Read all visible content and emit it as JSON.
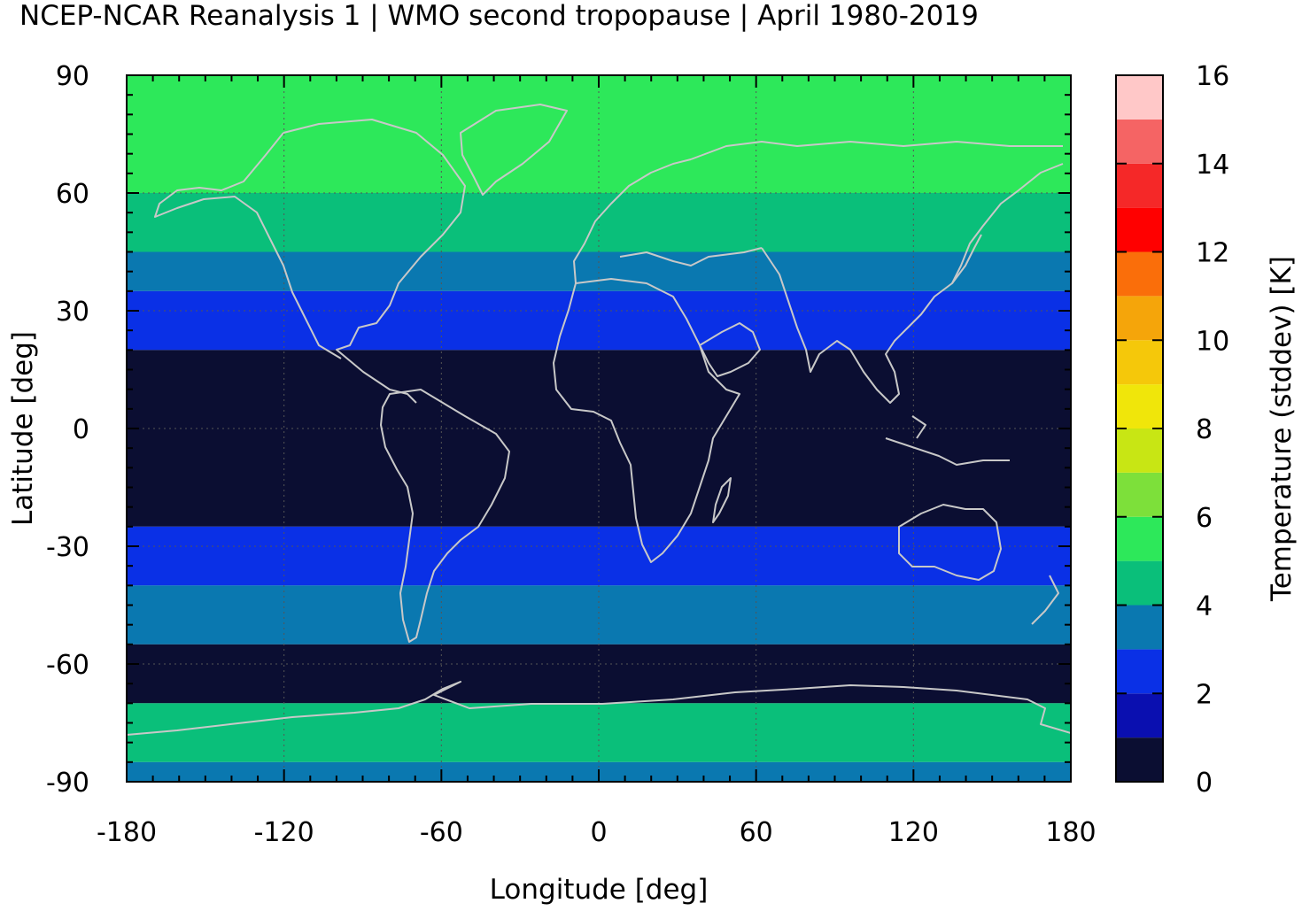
{
  "title": "NCEP-NCAR Reanalysis 1 | WMO second tropopause | April 1980-2019",
  "chart_data": {
    "type": "heatmap",
    "title": "NCEP-NCAR Reanalysis 1 | WMO second tropopause | April 1980-2019",
    "xlabel": "Longitude [deg]",
    "ylabel": "Latitude [deg]",
    "colorbar_label": "Temperature (stddev) [K]",
    "xlim": [
      -180,
      180
    ],
    "ylim": [
      -90,
      90
    ],
    "x_ticks": [
      -180,
      -120,
      -60,
      0,
      60,
      120,
      180
    ],
    "y_ticks": [
      90,
      60,
      30,
      0,
      -30,
      -60,
      -90
    ],
    "x_tick_labels": [
      "-180",
      "-120",
      "-60",
      "0",
      "60",
      "120",
      "180"
    ],
    "y_tick_labels": [
      "90",
      "60",
      "30",
      "0",
      "-30",
      "-60",
      "-90"
    ],
    "colorbar_ticks": [
      0,
      2,
      4,
      6,
      8,
      10,
      12,
      14,
      16
    ],
    "colorbar_tick_labels": [
      "0",
      "2",
      "4",
      "6",
      "8",
      "10",
      "12",
      "14",
      "16"
    ],
    "colorbar_range": [
      0,
      16
    ],
    "colorbar_levels": [
      "#0b0e32",
      "#0a0fb0",
      "#0a30e6",
      "#0a78b0",
      "#0abf7a",
      "#2de85a",
      "#7de03a",
      "#c8e614",
      "#f0e60a",
      "#f5c80a",
      "#f5a50a",
      "#fa6e0a",
      "#ff0000",
      "#f52828",
      "#f56464",
      "#ffc8c8"
    ],
    "grid": true,
    "coastlines": true,
    "approx_field": [
      {
        "lat_range": [
          75,
          90
        ],
        "value": 5.5
      },
      {
        "lat_range": [
          60,
          75
        ],
        "value": 5.0
      },
      {
        "lat_range": [
          45,
          60
        ],
        "value": 4.0
      },
      {
        "lat_range": [
          35,
          45
        ],
        "value": 3.5
      },
      {
        "lat_range": [
          20,
          35
        ],
        "value": 2.5
      },
      {
        "lat_range": [
          -25,
          20
        ],
        "value": 0.5
      },
      {
        "lat_range": [
          -40,
          -25
        ],
        "value": 2.5
      },
      {
        "lat_range": [
          -55,
          -40
        ],
        "value": 3.5
      },
      {
        "lat_range": [
          -70,
          -55
        ],
        "value": 0.8
      },
      {
        "lat_range": [
          -85,
          -70
        ],
        "value": 4.5
      },
      {
        "lat_range": [
          -90,
          -85
        ],
        "value": 3.5
      }
    ]
  }
}
